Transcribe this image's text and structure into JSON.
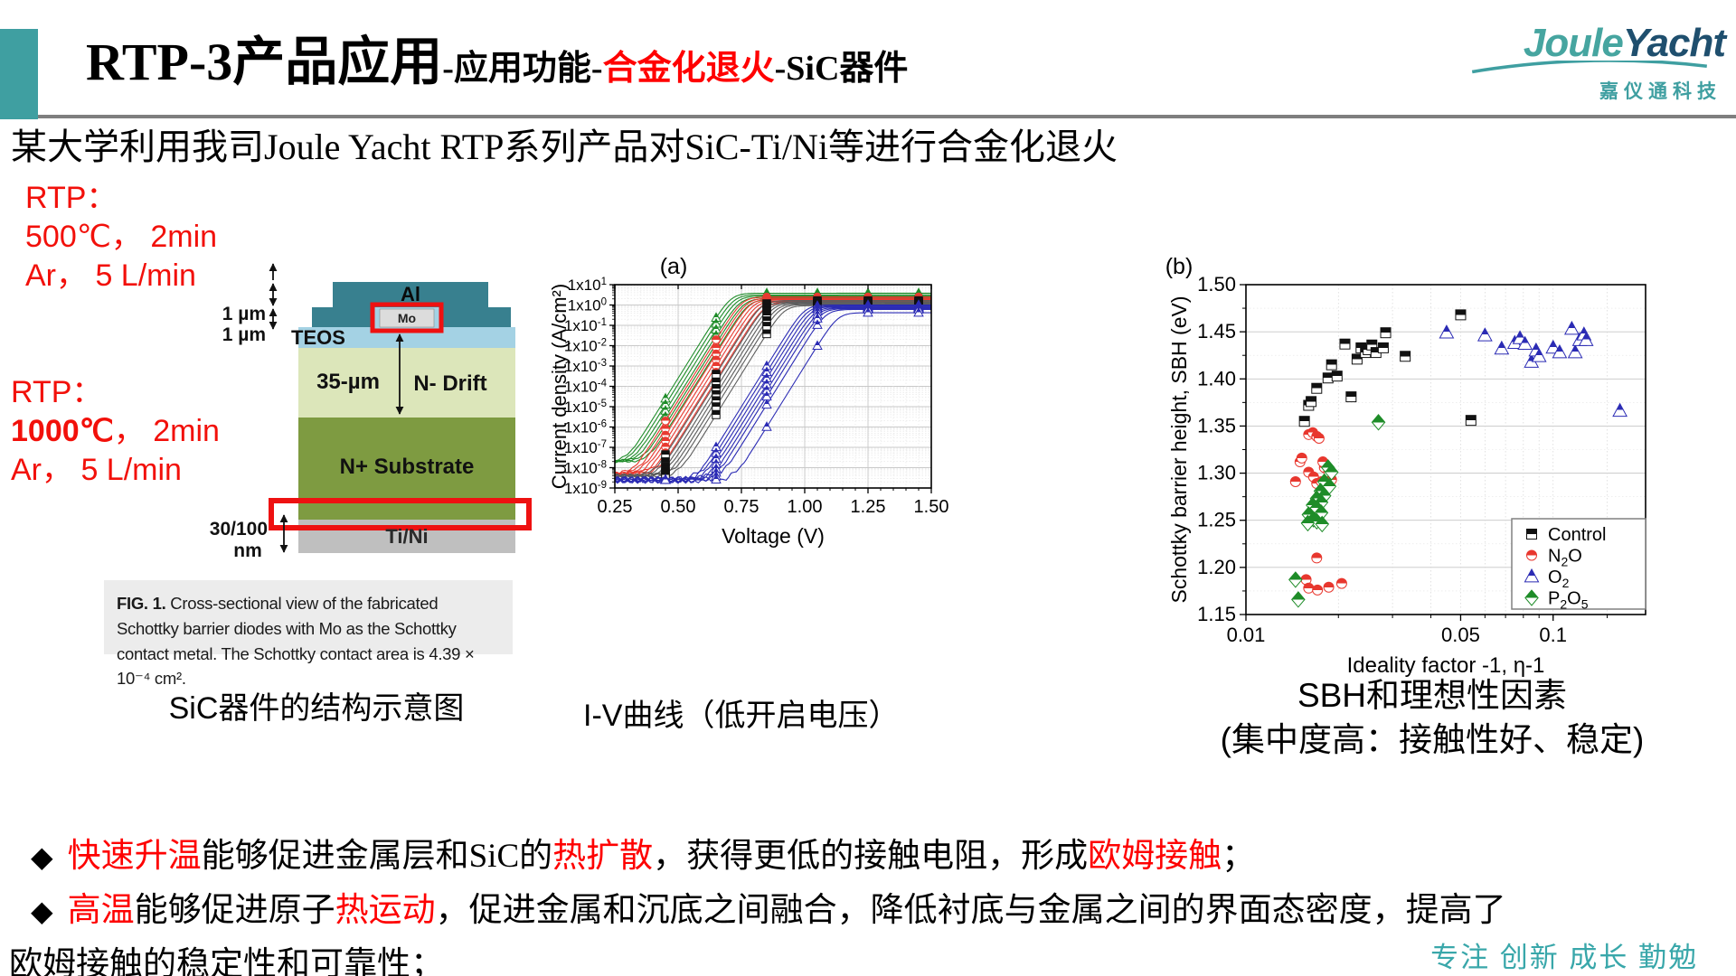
{
  "header": {
    "accent_color": "#3f9fa1",
    "title_main": "RTP-3产品应用",
    "title_sub_prefix": "-应用功能-",
    "title_sub_highlight": "合金化退火",
    "title_sub_suffix": "-SiC器件",
    "highlight_color": "#ff0000",
    "logo": {
      "part1": "Joule",
      "part2": "Yacht",
      "subtext": "嘉仪通科技",
      "part1_color": "#46a5a0",
      "part2_color": "#1f4f6e"
    }
  },
  "subtitle": "某大学利用我司Joule Yacht RTP系列产品对SiC-Ti/Ni等进行合金化退火",
  "rtp_top": {
    "l1": "RTP：",
    "l2": "500℃， 2min",
    "l3": "Ar， 5 L/min"
  },
  "rtp_bottom": {
    "l1": "RTP：",
    "l2_bold": "1000℃",
    "l2_rest": "， 2min",
    "l3": "Ar， 5 L/min"
  },
  "diagram": {
    "labels": {
      "al": "Al",
      "mo": "Mo",
      "teos": "TEOS",
      "drift_dim": "35-µm",
      "drift": "N- Drift",
      "substrate": "N+ Substrate",
      "contact": "Ti/Ni",
      "dim1": "1 µm",
      "dim2": "1 µm",
      "dim3": "30/100",
      "dim3b": "nm"
    },
    "colors": {
      "al": "#38808f",
      "teos": "#a4d2e4",
      "drift": "#dce6ba",
      "substrate": "#7e9b41",
      "contact": "#bfbfbf",
      "mo_fill": "#dcdcdc",
      "highlight": "#ee1111"
    },
    "caption_prefix": "FIG. 1.",
    "caption": " Cross-sectional view of the fabricated Schottky barrier diodes with Mo as the Schottky contact metal. The Schottky contact area is 4.39 × 10⁻⁴ cm²."
  },
  "captions": {
    "left": "SiC器件的结构示意图",
    "mid": "I-V曲线（低开启电压）",
    "right1": "SBH和理想性因素",
    "right2": "(集中度高：接触性好、稳定)"
  },
  "bullets": {
    "marker": "◆",
    "line1": [
      {
        "t": "快速升温",
        "red": true
      },
      {
        "t": "能够促进金属层和SiC的"
      },
      {
        "t": "热扩散",
        "red": true
      },
      {
        "t": "，获得更低的接触电阻，形成"
      },
      {
        "t": "欧姆接触",
        "red": true
      },
      {
        "t": "；"
      }
    ],
    "line2": [
      {
        "t": "高温",
        "red": true
      },
      {
        "t": "能够促进原子"
      },
      {
        "t": "热运动",
        "red": true
      },
      {
        "t": "，促进金属和沉底之间融合，降低衬底与金属之间的界面态密度，提高了"
      }
    ],
    "line3": "欧姆接触的稳定性和可靠性；"
  },
  "footer_motto": "专注 创新 成长 勤勉",
  "chart_data": [
    {
      "type": "line",
      "panel_label": "(a)",
      "xlabel": "Voltage (V)",
      "ylabel": "Current density (A/cm²)",
      "xlim": [
        0.25,
        1.5
      ],
      "x_ticks": [
        "0.25",
        "0.50",
        "0.75",
        "1.00",
        "1.25",
        "1.50"
      ],
      "y_scale": "log",
      "ylim_log10": [
        -9,
        1
      ],
      "y_tick_prefix": "1x10",
      "y_tick_exponents": [
        1,
        0,
        -1,
        -2,
        -3,
        -4,
        -5,
        -6,
        -7,
        -8,
        -9
      ],
      "marker_x": [
        0.45,
        0.65,
        0.85,
        1.05,
        1.25,
        1.45
      ],
      "slope_dec_per_V": 20,
      "groups": [
        {
          "name": "P2O5",
          "color": "#1e8c28",
          "marker": "triangle",
          "log10_floor": -7.7,
          "noise_amp": 0.07,
          "curves": [
            {
              "v1": 0.68,
              "jsat": 0.58
            },
            {
              "v1": 0.695,
              "jsat": 0.5
            },
            {
              "v1": 0.71,
              "jsat": 0.44
            },
            {
              "v1": 0.725,
              "jsat": 0.38
            },
            {
              "v1": 0.745,
              "jsat": 0.32
            },
            {
              "v1": 0.765,
              "jsat": 0.27
            }
          ]
        },
        {
          "name": "N2O",
          "color": "#e83a30",
          "marker": "circle",
          "log10_floor": -8.3,
          "noise_amp": 0.1,
          "curves": [
            {
              "v1": 0.735,
              "jsat": 0.4
            },
            {
              "v1": 0.755,
              "jsat": 0.34
            },
            {
              "v1": 0.77,
              "jsat": 0.3
            },
            {
              "v1": 0.785,
              "jsat": 0.27
            },
            {
              "v1": 0.8,
              "jsat": 0.22
            },
            {
              "v1": 0.815,
              "jsat": 0.18
            },
            {
              "v1": 0.835,
              "jsat": 0.12
            }
          ]
        },
        {
          "name": "Control",
          "color": "#5c5c5c",
          "marker": "square",
          "marker_color": "#111111",
          "log10_floor": -8.4,
          "noise_amp": 0.1,
          "curves": [
            {
              "v1": 0.82,
              "jsat": 0.22
            },
            {
              "v1": 0.84,
              "jsat": 0.17
            },
            {
              "v1": 0.855,
              "jsat": 0.13
            },
            {
              "v1": 0.87,
              "jsat": 0.1
            },
            {
              "v1": 0.885,
              "jsat": 0.06
            },
            {
              "v1": 0.9,
              "jsat": 0.02
            },
            {
              "v1": 0.92,
              "jsat": -0.03
            }
          ]
        },
        {
          "name": "O2",
          "color": "#2b2bb4",
          "marker": "triangle",
          "log10_floor": -8.6,
          "noise_amp": 0.17,
          "curves": [
            {
              "v1": 1.0,
              "jsat": 0.0
            },
            {
              "v1": 1.015,
              "jsat": -0.05
            },
            {
              "v1": 1.03,
              "jsat": -0.08
            },
            {
              "v1": 1.045,
              "jsat": -0.12
            },
            {
              "v1": 1.06,
              "jsat": -0.15
            },
            {
              "v1": 1.075,
              "jsat": -0.18
            },
            {
              "v1": 1.095,
              "jsat": -0.22
            },
            {
              "v1": 1.15,
              "jsat": -0.38
            }
          ]
        }
      ]
    },
    {
      "type": "scatter",
      "panel_label": "(b)",
      "xlabel": "Ideality factor -1, η-1",
      "ylabel": "Schottky barrier height, SBH (eV)",
      "x_scale": "log",
      "xlim": [
        0.01,
        0.2
      ],
      "x_ticks": [
        {
          "v": 0.01,
          "label": "0.01"
        },
        {
          "v": 0.05,
          "label": "0.05"
        },
        {
          "v": 0.1,
          "label": "0.1"
        }
      ],
      "x_minor_ticks": [
        0.02,
        0.03,
        0.04,
        0.05,
        0.06,
        0.07,
        0.08,
        0.09,
        0.1,
        0.15
      ],
      "ylim": [
        1.15,
        1.5
      ],
      "y_tick_step": 0.05,
      "legend_pos": "bottom-right",
      "series": [
        {
          "name": "Control",
          "marker": "square",
          "color": "#111111",
          "label_segments": [
            {
              "t": "Control"
            }
          ],
          "points": [
            [
              0.0155,
              1.355
            ],
            [
              0.016,
              1.372
            ],
            [
              0.0163,
              1.376
            ],
            [
              0.017,
              1.39
            ],
            [
              0.0185,
              1.401
            ],
            [
              0.019,
              1.415
            ],
            [
              0.0198,
              1.403
            ],
            [
              0.021,
              1.437
            ],
            [
              0.022,
              1.381
            ],
            [
              0.023,
              1.421
            ],
            [
              0.0237,
              1.433
            ],
            [
              0.0245,
              1.428
            ],
            [
              0.025,
              1.431
            ],
            [
              0.0257,
              1.436
            ],
            [
              0.0265,
              1.428
            ],
            [
              0.028,
              1.433
            ],
            [
              0.0285,
              1.449
            ],
            [
              0.033,
              1.424
            ],
            [
              0.05,
              1.468
            ],
            [
              0.054,
              1.356
            ]
          ]
        },
        {
          "name": "N2O",
          "marker": "circle",
          "color": "#e8372e",
          "label_segments": [
            {
              "t": "N"
            },
            {
              "t": "2",
              "sub": true
            },
            {
              "t": "O"
            }
          ],
          "points": [
            [
              0.0145,
              1.291
            ],
            [
              0.015,
              1.312
            ],
            [
              0.0152,
              1.316
            ],
            [
              0.016,
              1.341
            ],
            [
              0.0165,
              1.343
            ],
            [
              0.017,
              1.339
            ],
            [
              0.0173,
              1.337
            ],
            [
              0.016,
              1.301
            ],
            [
              0.0166,
              1.296
            ],
            [
              0.017,
              1.289
            ],
            [
              0.0176,
              1.291
            ],
            [
              0.018,
              1.306
            ],
            [
              0.0186,
              1.301
            ],
            [
              0.019,
              1.293
            ],
            [
              0.0178,
              1.312
            ],
            [
              0.017,
              1.21
            ],
            [
              0.0157,
              1.187
            ],
            [
              0.016,
              1.178
            ],
            [
              0.0171,
              1.176
            ],
            [
              0.0186,
              1.179
            ],
            [
              0.0205,
              1.183
            ]
          ]
        },
        {
          "name": "O2",
          "marker": "triangle",
          "color": "#2b2bb4",
          "label_segments": [
            {
              "t": "O"
            },
            {
              "t": "2",
              "sub": true
            }
          ],
          "points": [
            [
              0.045,
              1.449
            ],
            [
              0.06,
              1.446
            ],
            [
              0.068,
              1.432
            ],
            [
              0.075,
              1.438
            ],
            [
              0.078,
              1.443
            ],
            [
              0.081,
              1.437
            ],
            [
              0.085,
              1.418
            ],
            [
              0.088,
              1.43
            ],
            [
              0.09,
              1.424
            ],
            [
              0.1,
              1.433
            ],
            [
              0.105,
              1.428
            ],
            [
              0.115,
              1.453
            ],
            [
              0.118,
              1.428
            ],
            [
              0.122,
              1.441
            ],
            [
              0.126,
              1.447
            ],
            [
              0.128,
              1.441
            ],
            [
              0.165,
              1.366
            ]
          ]
        },
        {
          "name": "P2O5",
          "marker": "diamond",
          "color": "#1e8c28",
          "label_segments": [
            {
              "t": "P"
            },
            {
              "t": "2",
              "sub": true
            },
            {
              "t": "O"
            },
            {
              "t": "5",
              "sub": true
            }
          ],
          "points": [
            [
              0.0185,
              1.306
            ],
            [
              0.019,
              1.301
            ],
            [
              0.018,
              1.291
            ],
            [
              0.0187,
              1.286
            ],
            [
              0.0175,
              1.281
            ],
            [
              0.018,
              1.276
            ],
            [
              0.017,
              1.273
            ],
            [
              0.0176,
              1.269
            ],
            [
              0.0165,
              1.266
            ],
            [
              0.017,
              1.263
            ],
            [
              0.0176,
              1.258
            ],
            [
              0.016,
              1.256
            ],
            [
              0.0166,
              1.251
            ],
            [
              0.017,
              1.249
            ],
            [
              0.0177,
              1.246
            ],
            [
              0.0159,
              1.247
            ],
            [
              0.0145,
              1.187
            ],
            [
              0.0148,
              1.166
            ],
            [
              0.027,
              1.354
            ]
          ]
        }
      ]
    }
  ]
}
